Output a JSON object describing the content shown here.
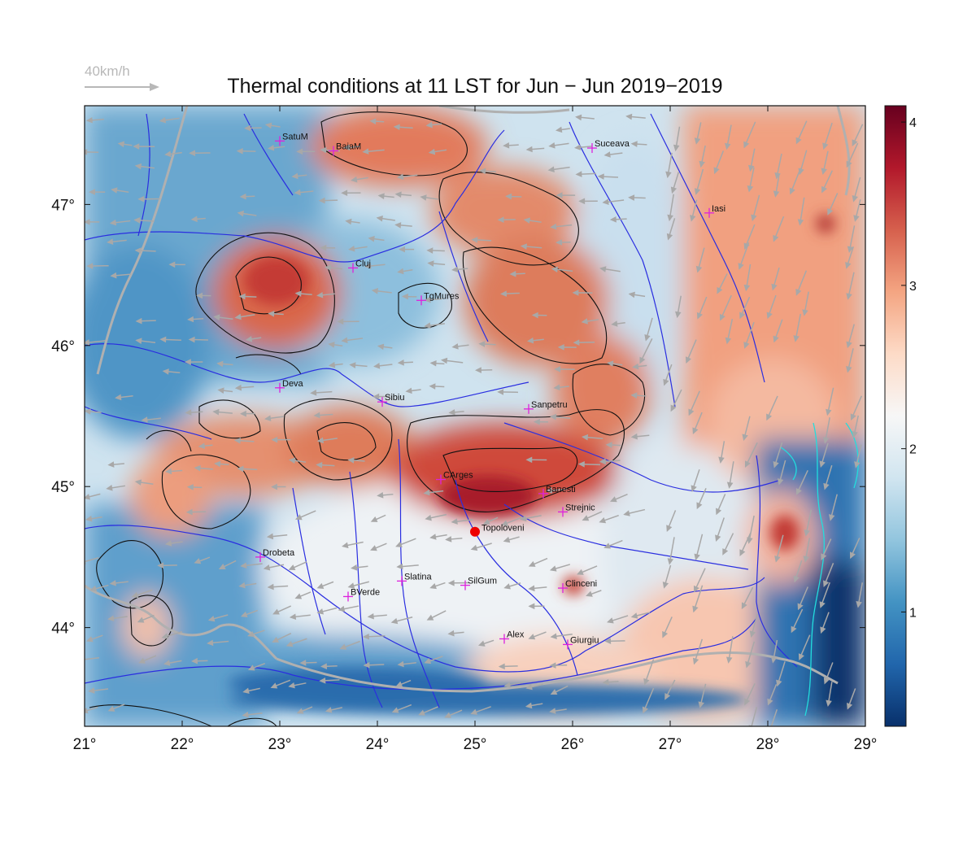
{
  "title": "Thermal conditions at 11 LST for Jun − Jun  2019−2019",
  "wind_scale": {
    "label": "40km/h"
  },
  "map": {
    "lon_range": [
      21,
      29
    ],
    "lat_range": [
      43.3,
      47.7
    ],
    "x_ticks": [
      {
        "value": 21,
        "label": "21°"
      },
      {
        "value": 22,
        "label": "22°"
      },
      {
        "value": 23,
        "label": "23°"
      },
      {
        "value": 24,
        "label": "24°"
      },
      {
        "value": 25,
        "label": "25°"
      },
      {
        "value": 26,
        "label": "26°"
      },
      {
        "value": 27,
        "label": "27°"
      },
      {
        "value": 28,
        "label": "28°"
      },
      {
        "value": 29,
        "label": "29°"
      }
    ],
    "y_ticks": [
      {
        "value": 44,
        "label": "44°"
      },
      {
        "value": 45,
        "label": "45°"
      },
      {
        "value": 46,
        "label": "46°"
      },
      {
        "value": 47,
        "label": "47°"
      }
    ],
    "cities": [
      {
        "name": "SatuM",
        "lon": 23.0,
        "lat": 47.45
      },
      {
        "name": "BaiaM",
        "lon": 23.55,
        "lat": 47.38
      },
      {
        "name": "Suceava",
        "lon": 26.2,
        "lat": 47.4
      },
      {
        "name": "Iasi",
        "lon": 27.4,
        "lat": 46.94
      },
      {
        "name": "Cluj",
        "lon": 23.75,
        "lat": 46.55
      },
      {
        "name": "TgMures",
        "lon": 24.45,
        "lat": 46.32
      },
      {
        "name": "Deva",
        "lon": 23.0,
        "lat": 45.7
      },
      {
        "name": "Sibiu",
        "lon": 24.05,
        "lat": 45.6
      },
      {
        "name": "Sanpetru",
        "lon": 25.55,
        "lat": 45.55
      },
      {
        "name": "CArges",
        "lon": 24.65,
        "lat": 45.05
      },
      {
        "name": "Banesti",
        "lon": 25.7,
        "lat": 44.95
      },
      {
        "name": "Strejnic",
        "lon": 25.9,
        "lat": 44.82
      },
      {
        "name": "Drobeta",
        "lon": 22.8,
        "lat": 44.5
      },
      {
        "name": "Slatina",
        "lon": 24.25,
        "lat": 44.33
      },
      {
        "name": "SilGum",
        "lon": 24.9,
        "lat": 44.3
      },
      {
        "name": "Clinceni",
        "lon": 25.9,
        "lat": 44.28
      },
      {
        "name": "BVerde",
        "lon": 23.7,
        "lat": 44.22
      },
      {
        "name": "Alex",
        "lon": 25.3,
        "lat": 43.92
      },
      {
        "name": "Giurgiu",
        "lon": 25.95,
        "lat": 43.88
      }
    ],
    "highlight_city": {
      "name": "Topoloveni",
      "lon": 25.0,
      "lat": 44.68
    },
    "colorbar": {
      "min": 0.3,
      "max": 4.1,
      "ticks": [
        {
          "value": 1,
          "label": "1"
        },
        {
          "value": 2,
          "label": "2"
        },
        {
          "value": 3,
          "label": "3"
        },
        {
          "value": 4,
          "label": "4"
        }
      ],
      "colors": [
        "#08306b",
        "#2166ac",
        "#4393c3",
        "#92c5de",
        "#d1e5f0",
        "#f7f7f7",
        "#fddbc7",
        "#f4a582",
        "#d6604d",
        "#b2182b",
        "#67001f"
      ]
    },
    "highlight_color": "#ee0000",
    "city_marker_color": "#dd22dd"
  }
}
